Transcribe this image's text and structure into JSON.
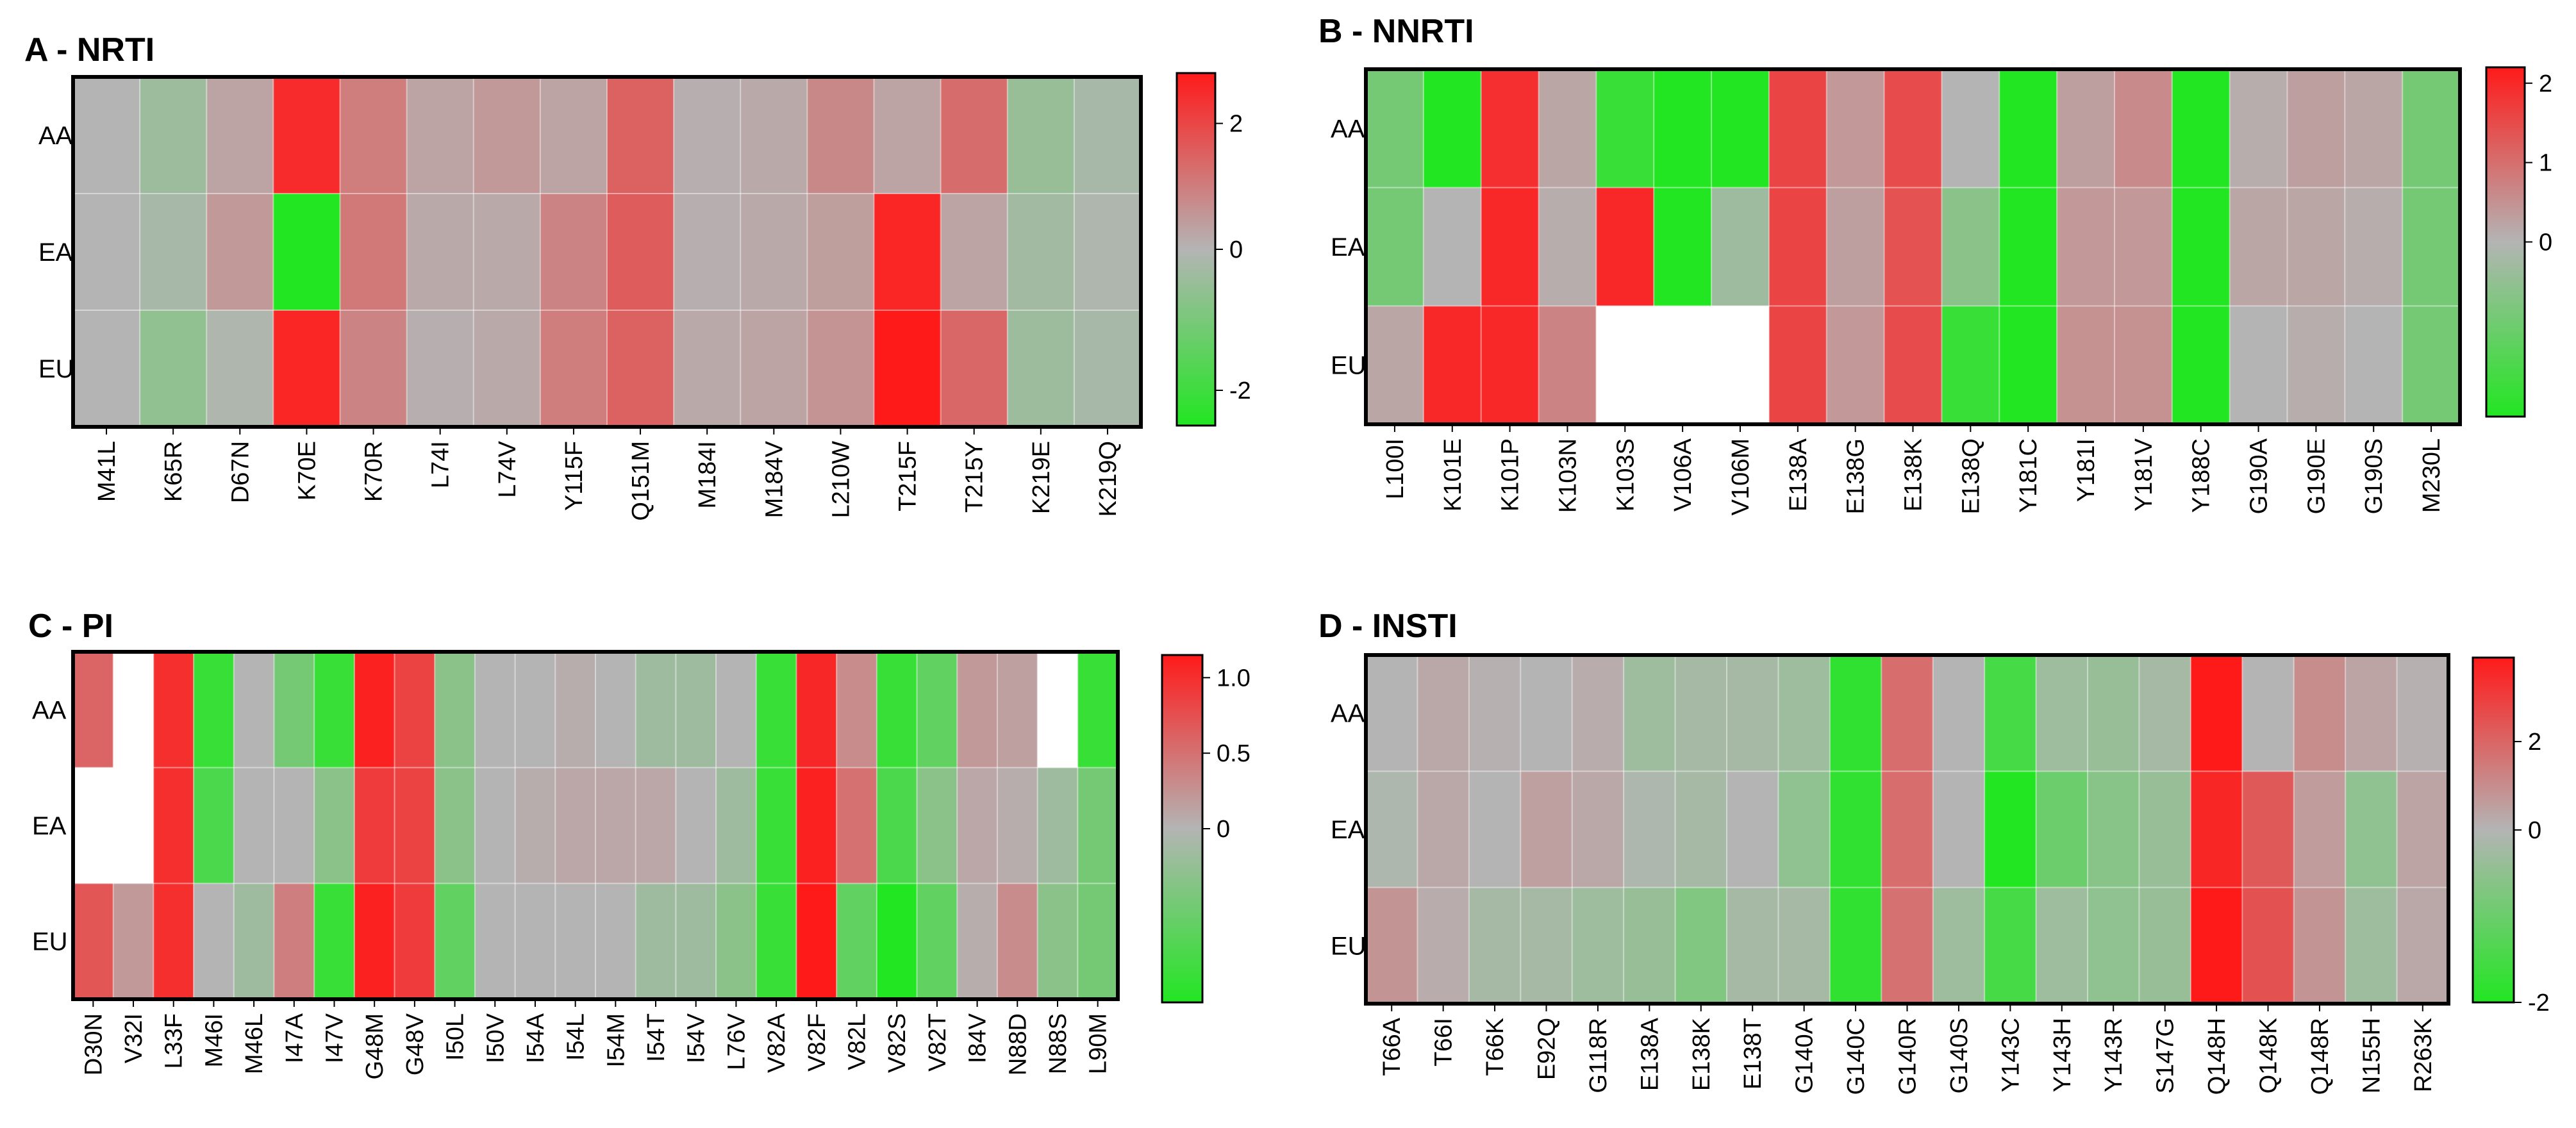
{
  "chart_data": [
    {
      "type": "heatmap",
      "title": "A - NRTI",
      "rows": [
        "AA",
        "EA",
        "EU"
      ],
      "columns": [
        "M41L",
        "K65R",
        "D67N",
        "K70E",
        "K70R",
        "L74I",
        "L74V",
        "Y115F",
        "Q151M",
        "M184I",
        "M184V",
        "L210W",
        "T215F",
        "T215Y",
        "K219E",
        "K219Q"
      ],
      "values": [
        [
          0.0,
          -0.4,
          0.3,
          2.5,
          1.0,
          0.3,
          0.5,
          0.3,
          1.5,
          0.1,
          0.2,
          0.8,
          0.3,
          1.3,
          -0.5,
          -0.2
        ],
        [
          0.0,
          -0.2,
          0.5,
          -2.5,
          1.1,
          0.2,
          0.2,
          0.9,
          1.6,
          0.1,
          0.2,
          0.4,
          2.6,
          0.3,
          -0.3,
          -0.1
        ],
        [
          0.0,
          -0.6,
          -0.1,
          2.6,
          0.9,
          0.1,
          0.2,
          1.0,
          1.5,
          0.2,
          0.3,
          0.6,
          2.8,
          1.4,
          -0.4,
          -0.2
        ]
      ],
      "colorbar": {
        "min": -2.5,
        "max": 2.8,
        "ticks": [
          -2,
          0,
          2
        ],
        "tick_labels": [
          "-2",
          "0",
          "2"
        ],
        "low_color": "#22e622",
        "mid_color": "#b4b4b4",
        "high_color": "#ff1a1a"
      },
      "blank_cells": []
    },
    {
      "type": "heatmap",
      "title": "B - NNRTI",
      "rows": [
        "AA",
        "EA",
        "EU"
      ],
      "columns": [
        "L100I",
        "K101E",
        "K101P",
        "K103N",
        "K103S",
        "V106A",
        "V106M",
        "E138A",
        "E138G",
        "E138K",
        "E138Q",
        "Y181C",
        "Y181I",
        "Y181V",
        "Y188C",
        "G190A",
        "G190E",
        "G190S",
        "M230L"
      ],
      "values": [
        [
          -0.3,
          -2.0,
          1.9,
          0.2,
          -0.6,
          -0.8,
          -0.7,
          1.6,
          0.4,
          1.5,
          0.0,
          -2.0,
          0.3,
          0.6,
          -2.0,
          0.1,
          0.3,
          0.2,
          -0.3
        ],
        [
          -0.3,
          0.0,
          2.0,
          0.1,
          2.0,
          -0.7,
          -0.1,
          1.6,
          0.3,
          1.4,
          -0.2,
          -1.5,
          0.4,
          0.4,
          -1.6,
          0.2,
          0.2,
          0.1,
          -0.3
        ],
        [
          0.2,
          2.0,
          2.0,
          0.7,
          null,
          null,
          null,
          1.6,
          0.4,
          1.5,
          -0.6,
          -1.6,
          0.5,
          0.5,
          -2.0,
          0.0,
          0.1,
          0.0,
          -0.3
        ]
      ],
      "colorbar": {
        "min": -0.7,
        "max": 2.2,
        "ticks": [
          0,
          1,
          2
        ],
        "tick_labels": [
          "0",
          "1",
          "2"
        ],
        "low_color": "#22e622",
        "mid_color": "#b4b4b4",
        "high_color": "#ff1a1a"
      },
      "blank_cells": [
        [
          2,
          4
        ],
        [
          2,
          5
        ],
        [
          2,
          6
        ]
      ]
    },
    {
      "type": "heatmap",
      "title": "C - PI",
      "rows": [
        "AA",
        "EA",
        "EU"
      ],
      "columns": [
        "D30N",
        "V32I",
        "L33F",
        "M46I",
        "M46L",
        "I47A",
        "I47V",
        "G48M",
        "G48V",
        "I50L",
        "I50V",
        "I54A",
        "I54L",
        "I54M",
        "I54T",
        "I54V",
        "L76V",
        "V82A",
        "V82F",
        "V82L",
        "V82S",
        "V82T",
        "I84V",
        "N88D",
        "N88S",
        "L90M"
      ],
      "values": [
        [
          0.6,
          null,
          1.0,
          -0.3,
          0.0,
          -0.15,
          -0.3,
          1.1,
          0.85,
          -0.1,
          0.0,
          0.0,
          0.05,
          0.0,
          -0.05,
          -0.05,
          0.0,
          -0.3,
          1.05,
          0.3,
          -0.3,
          -0.2,
          0.2,
          0.15,
          null,
          -0.3
        ],
        [
          null,
          null,
          1.0,
          -0.25,
          0.0,
          0.0,
          -0.1,
          0.9,
          0.85,
          -0.1,
          0.0,
          0.05,
          0.1,
          0.1,
          0.1,
          0.0,
          -0.05,
          -0.3,
          1.1,
          0.5,
          -0.25,
          -0.1,
          0.1,
          0.05,
          -0.05,
          -0.15
        ],
        [
          0.7,
          0.2,
          1.0,
          0.0,
          -0.05,
          0.4,
          -0.3,
          1.1,
          0.9,
          -0.2,
          0.0,
          0.0,
          0.0,
          0.0,
          -0.05,
          -0.05,
          -0.1,
          -0.3,
          1.15,
          -0.2,
          -0.35,
          -0.2,
          0.05,
          0.3,
          -0.1,
          -0.15
        ]
      ],
      "colorbar": {
        "min": -0.35,
        "max": 1.15,
        "ticks": [
          0,
          0.5,
          1.0
        ],
        "tick_labels": [
          "0",
          "0.5",
          "1.0"
        ],
        "low_color": "#22e622",
        "mid_color": "#b4b4b4",
        "high_color": "#ff1a1a"
      },
      "blank_cells": [
        [
          0,
          1
        ],
        [
          0,
          24
        ],
        [
          1,
          0
        ],
        [
          1,
          1
        ]
      ]
    },
    {
      "type": "heatmap",
      "title": "D - INSTI",
      "rows": [
        "AA",
        "EA",
        "EU"
      ],
      "columns": [
        "T66A",
        "T66I",
        "T66K",
        "E92Q",
        "G118R",
        "E138A",
        "E138K",
        "E138T",
        "G140A",
        "G140C",
        "G140R",
        "G140S",
        "Y143C",
        "Y143H",
        "Y143R",
        "S147G",
        "Q148H",
        "Q148K",
        "Q148R",
        "N155H",
        "R263K"
      ],
      "values": [
        [
          0.0,
          0.3,
          0.1,
          0.0,
          0.2,
          -0.3,
          -0.2,
          -0.2,
          -0.3,
          -1.8,
          1.8,
          0.0,
          -1.5,
          -0.3,
          -0.4,
          -0.2,
          3.9,
          0.0,
          1.0,
          0.4,
          0.1
        ],
        [
          -0.1,
          0.3,
          0.0,
          0.5,
          0.3,
          -0.1,
          -0.2,
          0.0,
          -0.5,
          -1.8,
          1.8,
          0.0,
          -2.0,
          -1.0,
          -0.6,
          -0.4,
          3.6,
          2.3,
          0.6,
          -0.5,
          0.4
        ],
        [
          0.8,
          0.2,
          -0.2,
          -0.2,
          -0.3,
          -0.4,
          -0.7,
          -0.2,
          -0.2,
          -1.8,
          1.7,
          -0.3,
          -1.5,
          -0.3,
          -0.5,
          -0.4,
          3.9,
          2.5,
          0.8,
          -0.3,
          0.3
        ]
      ],
      "colorbar": {
        "min": -2.0,
        "max": 3.9,
        "ticks": [
          -2,
          0,
          2
        ],
        "tick_labels": [
          "-2",
          "0",
          "2"
        ],
        "low_color": "#22e622",
        "mid_color": "#b4b4b4",
        "high_color": "#ff1a1a"
      },
      "blank_cells": []
    }
  ]
}
